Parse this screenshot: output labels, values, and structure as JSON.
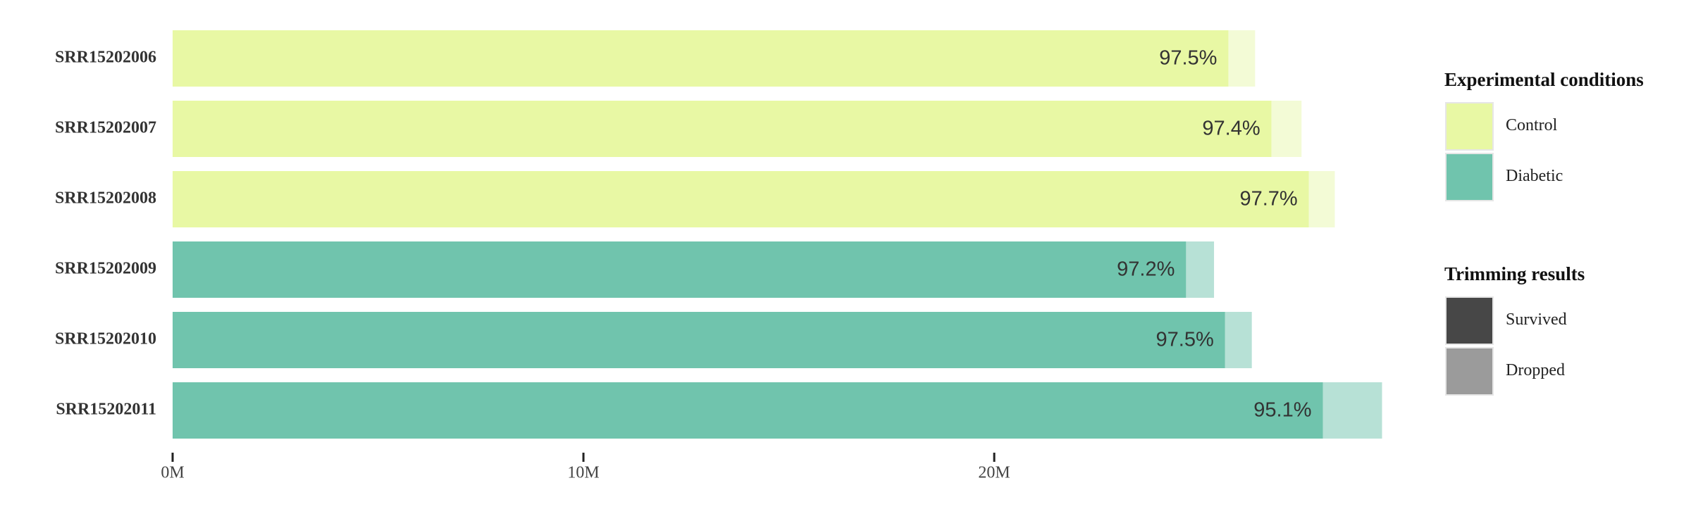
{
  "chart_data": {
    "type": "stacked-barh",
    "categories": [
      "SRR15202006",
      "SRR15202007",
      "SRR15202008",
      "SRR15202009",
      "SRR15202010",
      "SRR15202011"
    ],
    "sample_condition": [
      0,
      0,
      0,
      1,
      1,
      1
    ],
    "series": [
      {
        "name": "Survived",
        "color": "#474747",
        "values": [
          25700000,
          26750000,
          27660000,
          24670000,
          25620000,
          28000000
        ]
      },
      {
        "name": "Dropped",
        "color": "#9b9b9b",
        "values": [
          650000,
          730000,
          630000,
          680000,
          650000,
          1440000
        ]
      }
    ],
    "percent_labels": [
      "97.5%",
      "97.4%",
      "97.7%",
      "97.2%",
      "97.5%",
      "95.1%"
    ],
    "conditions_title": "Experimental conditions",
    "conditions": [
      {
        "name": "Control",
        "color": "#e8f8a4",
        "dropped_color": "#f3fbd6"
      },
      {
        "name": "Diabetic",
        "color": "#70c4ad",
        "dropped_color": "#b7e1d6"
      }
    ],
    "trimming_title": "Trimming results",
    "xlim": [
      0,
      29500000
    ],
    "xticks": [
      {
        "value": 0,
        "label": "0M"
      },
      {
        "value": 10000000,
        "label": "10M"
      },
      {
        "value": 20000000,
        "label": "20M"
      }
    ]
  }
}
